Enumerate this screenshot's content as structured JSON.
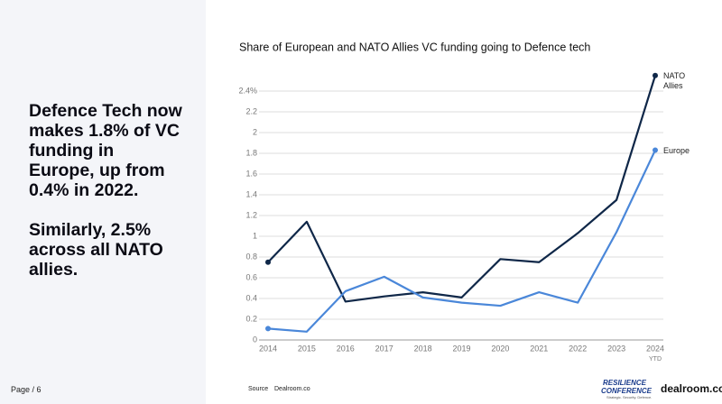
{
  "slide": {
    "headline": "Defence Tech now makes 1.8% of VC funding in Europe, up from 0.4% in 2022.",
    "subline": "Similarly, 2.5% across all NATO allies.",
    "page_label": "Page / 6",
    "source_label": "Source",
    "source": "Dealroom.co",
    "logo_line1": "RESILIENCE",
    "logo_line2": "CONFERENCE",
    "logo_tagline": "Strategic. Security. Defence.",
    "brand": "dealroom.co"
  },
  "chart_data": {
    "type": "line",
    "title": "Share of European and NATO Allies VC funding going to Defence tech",
    "categories": [
      "2014",
      "2015",
      "2016",
      "2017",
      "2018",
      "2019",
      "2020",
      "2021",
      "2022",
      "2023",
      "2024"
    ],
    "last_category_note": "YTD",
    "series": [
      {
        "name": "NATO Allies",
        "color": "#0f2748",
        "values": [
          0.75,
          1.14,
          0.37,
          0.42,
          0.46,
          0.41,
          0.78,
          0.75,
          1.03,
          1.35,
          2.55
        ]
      },
      {
        "name": "Europe",
        "color": "#4a87d9",
        "values": [
          0.11,
          0.08,
          0.47,
          0.61,
          0.41,
          0.36,
          0.33,
          0.46,
          0.36,
          1.04,
          1.83
        ]
      }
    ],
    "ylim": [
      0,
      2.6
    ],
    "yticks": [
      0,
      0.2,
      0.4,
      0.6,
      0.8,
      1,
      1.2,
      1.4,
      1.6,
      1.8,
      2,
      2.2,
      {
        "value": 2.4,
        "label": "2.4%"
      }
    ],
    "grid": true
  }
}
